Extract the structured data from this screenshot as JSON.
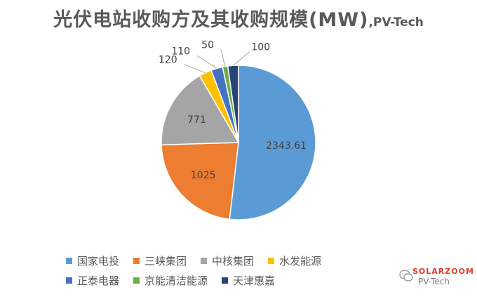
{
  "chart_data": {
    "type": "pie",
    "title": "光伏电站收购方及其收购规模(MW)",
    "subtitle": ",PV-Tech",
    "categories": [
      "国家电投",
      "三峡集团",
      "中核集团",
      "水发能源",
      "正泰电器",
      "京能清洁能源",
      "天津惠嘉"
    ],
    "values": [
      2343.61,
      1025,
      771,
      120,
      110,
      50,
      100
    ],
    "labels": [
      "2343.61",
      "1025",
      "771",
      "120",
      "110",
      "50",
      "100"
    ],
    "colors": [
      "#5b9bd5",
      "#ed7d31",
      "#a5a5a5",
      "#ffc000",
      "#4472c4",
      "#70ad47",
      "#264478"
    ],
    "legend_position": "bottom"
  },
  "watermark": {
    "brand": "SOLARZOOM",
    "text": "PV-Tech"
  }
}
